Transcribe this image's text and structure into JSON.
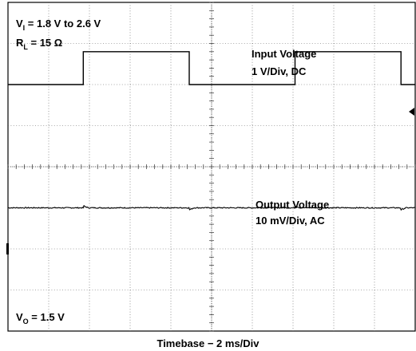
{
  "chart_data": {
    "type": "line",
    "xlabel": "Timebase − 2 ms/Div",
    "ylabel": "",
    "grid": true,
    "divisions": {
      "x": 10,
      "y": 8
    },
    "xlim": [
      0,
      10
    ],
    "ylim": [
      -4,
      4
    ],
    "annotations": {
      "vi_sym": "V",
      "vi_sub": "I",
      "vi_rest": " = 1.8 V to 2.6 V",
      "rl_sym": "R",
      "rl_sub": "L",
      "rl_rest": " = 15 Ω",
      "vo_sym": "V",
      "vo_sub": "O",
      "vo_rest": " = 1.5 V"
    },
    "series": [
      {
        "name": "Input Voltage",
        "scale": "1 V/Div, DC",
        "x": [
          0,
          1.85,
          1.85,
          4.45,
          4.45,
          7.05,
          7.05,
          9.65,
          9.65,
          10
        ],
        "y": [
          2.0,
          2.0,
          2.8,
          2.8,
          2.0,
          2.0,
          2.8,
          2.8,
          2.0,
          2.0
        ]
      },
      {
        "name": "Output Voltage",
        "scale": "10 mV/Div, AC",
        "x": [
          0,
          1.85,
          4.45,
          7.05,
          9.65,
          10
        ],
        "y": [
          -1.0,
          -1.0,
          -1.0,
          -1.0,
          -1.0,
          -1.0
        ]
      }
    ]
  }
}
